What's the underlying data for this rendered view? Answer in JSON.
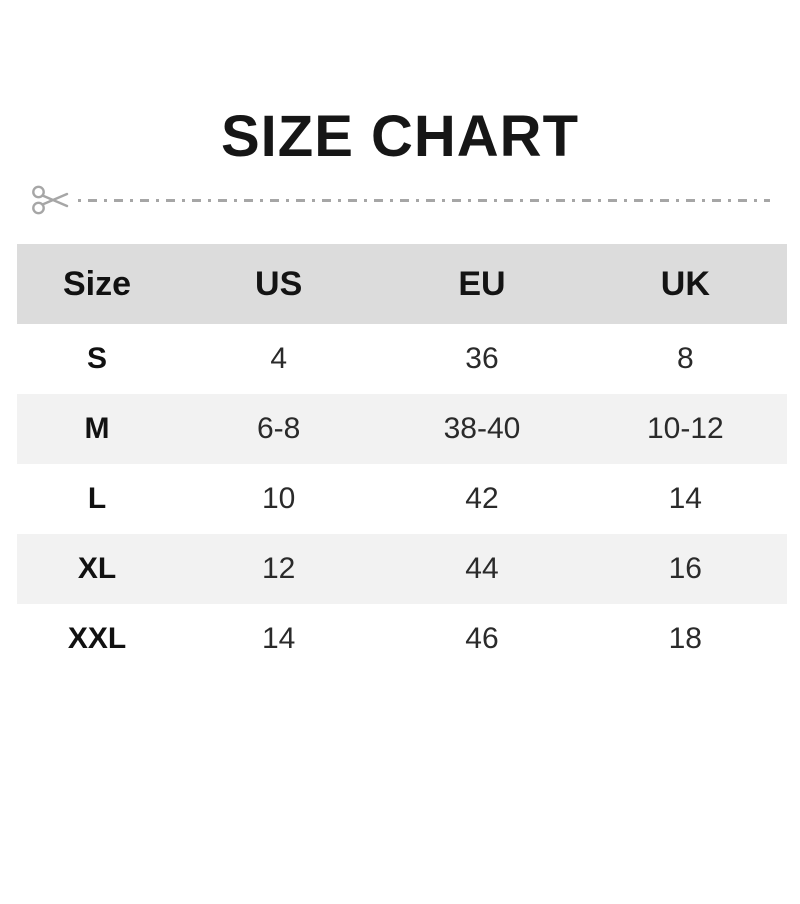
{
  "title": "SIZE CHART",
  "colors": {
    "header_bg": "#dcdcdc",
    "stripe_bg": "#f2f2f2",
    "text": "#1a1a1a",
    "divider": "#a6a6a6"
  },
  "divider": {
    "icon": "scissors-icon"
  },
  "chart_data": {
    "type": "table",
    "title": "SIZE CHART",
    "columns": [
      "Size",
      "US",
      "EU",
      "UK"
    ],
    "rows": [
      [
        "S",
        "4",
        "36",
        "8"
      ],
      [
        "M",
        "6-8",
        "38-40",
        "10-12"
      ],
      [
        "L",
        "10",
        "42",
        "14"
      ],
      [
        "XL",
        "12",
        "44",
        "16"
      ],
      [
        "XXL",
        "14",
        "46",
        "18"
      ]
    ]
  }
}
